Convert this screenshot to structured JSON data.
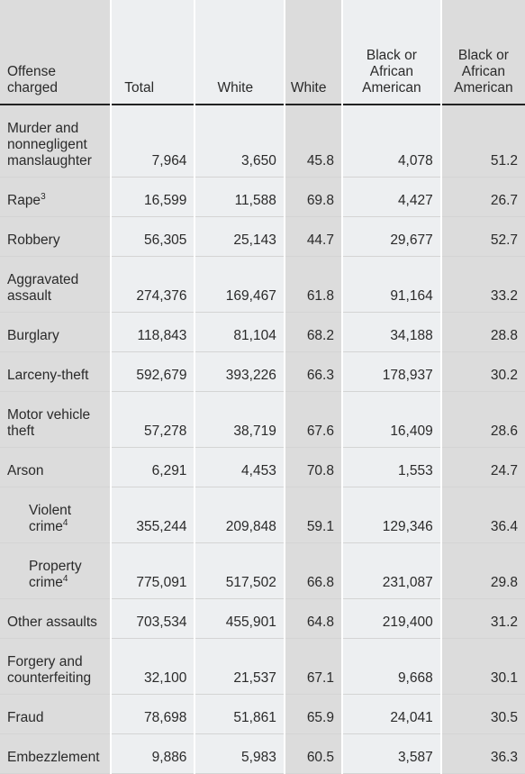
{
  "headers": {
    "offense": "Offense charged",
    "total": "Total",
    "white": "White",
    "white_pct": "White",
    "black": "Black or African American",
    "black_pct": "Black or African American"
  },
  "rows": [
    {
      "offense": "Murder and nonnegligent manslaughter",
      "sup": "",
      "total": "7,964",
      "white": "3,650",
      "white_pct": "45.8",
      "black": "4,078",
      "black_pct": "51.2"
    },
    {
      "offense": "Rape",
      "sup": "3",
      "total": "16,599",
      "white": "11,588",
      "white_pct": "69.8",
      "black": "4,427",
      "black_pct": "26.7"
    },
    {
      "offense": "Robbery",
      "sup": "",
      "total": "56,305",
      "white": "25,143",
      "white_pct": "44.7",
      "black": "29,677",
      "black_pct": "52.7"
    },
    {
      "offense": "Aggravated assault",
      "sup": "",
      "total": "274,376",
      "white": "169,467",
      "white_pct": "61.8",
      "black": "91,164",
      "black_pct": "33.2"
    },
    {
      "offense": "Burglary",
      "sup": "",
      "total": "118,843",
      "white": "81,104",
      "white_pct": "68.2",
      "black": "34,188",
      "black_pct": "28.8"
    },
    {
      "offense": "Larceny-theft",
      "sup": "",
      "total": "592,679",
      "white": "393,226",
      "white_pct": "66.3",
      "black": "178,937",
      "black_pct": "30.2"
    },
    {
      "offense": "Motor vehicle theft",
      "sup": "",
      "total": "57,278",
      "white": "38,719",
      "white_pct": "67.6",
      "black": "16,409",
      "black_pct": "28.6"
    },
    {
      "offense": "Arson",
      "sup": "",
      "total": "6,291",
      "white": "4,453",
      "white_pct": "70.8",
      "black": "1,553",
      "black_pct": "24.7"
    },
    {
      "offense": "Violent crime",
      "sup": "4",
      "total": "355,244",
      "white": "209,848",
      "white_pct": "59.1",
      "black": "129,346",
      "black_pct": "36.4"
    },
    {
      "offense": "Property crime",
      "sup": "4",
      "total": "775,091",
      "white": "517,502",
      "white_pct": "66.8",
      "black": "231,087",
      "black_pct": "29.8"
    },
    {
      "offense": "Other assaults",
      "sup": "",
      "total": "703,534",
      "white": "455,901",
      "white_pct": "64.8",
      "black": "219,400",
      "black_pct": "31.2"
    },
    {
      "offense": "Forgery and counterfeiting",
      "sup": "",
      "total": "32,100",
      "white": "21,537",
      "white_pct": "67.1",
      "black": "9,668",
      "black_pct": "30.1"
    },
    {
      "offense": "Fraud",
      "sup": "",
      "total": "78,698",
      "white": "51,861",
      "white_pct": "65.9",
      "black": "24,041",
      "black_pct": "30.5"
    },
    {
      "offense": "Embezzlement",
      "sup": "",
      "total": "9,886",
      "white": "5,983",
      "white_pct": "60.5",
      "black": "3,587",
      "black_pct": "36.3"
    }
  ],
  "colors": {
    "dark_column": "#dcdcdc",
    "light_column": "#edeff1"
  }
}
